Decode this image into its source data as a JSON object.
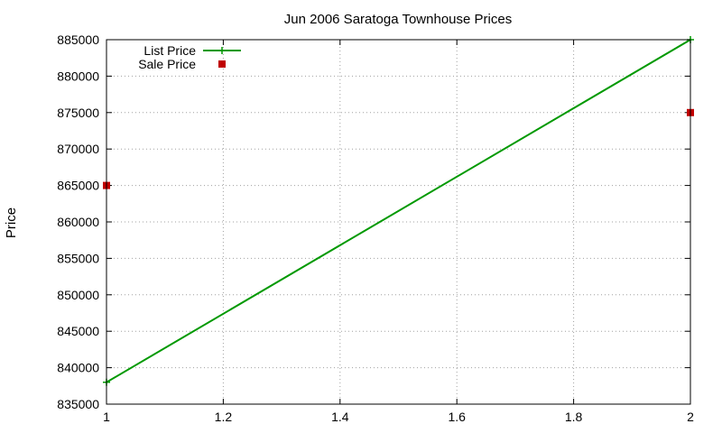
{
  "chart_data": {
    "type": "line",
    "title": "Jun 2006 Saratoga Townhouse Prices",
    "xlabel": "",
    "ylabel": "Price",
    "xlim": [
      1,
      2
    ],
    "ylim": [
      835000,
      885000
    ],
    "xticks": [
      "1",
      "1.2",
      "1.4",
      "1.6",
      "1.8",
      "2"
    ],
    "yticks": [
      "835000",
      "840000",
      "845000",
      "850000",
      "855000",
      "860000",
      "865000",
      "870000",
      "875000",
      "880000",
      "885000"
    ],
    "grid": true,
    "legend_position": "top-left",
    "series": [
      {
        "name": "List Price",
        "style": "linespoints",
        "color": "#009900",
        "x": [
          1,
          2
        ],
        "y": [
          838000,
          885000
        ]
      },
      {
        "name": "Sale Price",
        "style": "points",
        "color": "#c00000",
        "x": [
          1,
          2
        ],
        "y": [
          865000,
          875000
        ]
      }
    ]
  }
}
